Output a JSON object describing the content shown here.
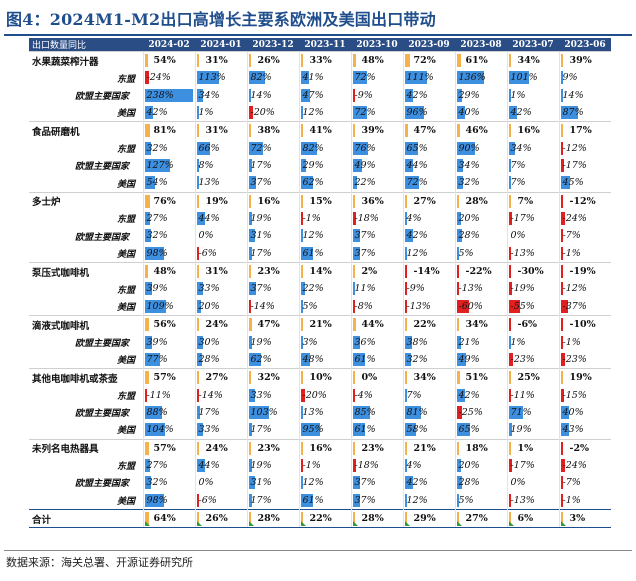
{
  "figure_title": "图4：2024M1-M2出口高增长主要系欧洲及美国出口带动",
  "header": {
    "first": "出口数量同比",
    "columns": [
      "2024-02",
      "2024-01",
      "2023-12",
      "2023-11",
      "2023-10",
      "2023-09",
      "2023-08",
      "2023-07",
      "2023-06"
    ]
  },
  "colors": {
    "header_bg": "#2b4d86",
    "pos_bar": "#3d8fe0",
    "neg_bar": "#e02020",
    "product_bar": "#f5b24a",
    "title": "#1f4e8c",
    "flag": "#2e9e3a"
  },
  "rows": [
    {
      "label": "水果蔬菜榨汁器",
      "level": 0,
      "values": [
        "54%",
        "31%",
        "26%",
        "33%",
        "48%",
        "72%",
        "61%",
        "34%",
        "39%"
      ]
    },
    {
      "label": "东盟",
      "level": 1,
      "values": [
        "-24%",
        "113%",
        "82%",
        "41%",
        "72%",
        "111%",
        "136%",
        "101%",
        "9%"
      ]
    },
    {
      "label": "欧盟主要国家",
      "level": 2,
      "values": [
        "238%",
        "34%",
        "14%",
        "47%",
        "-9%",
        "42%",
        "29%",
        "1%",
        "14%"
      ]
    },
    {
      "label": "美国",
      "level": 1,
      "values": [
        "42%",
        "1%",
        "-20%",
        "12%",
        "72%",
        "96%",
        "40%",
        "42%",
        "87%"
      ]
    },
    {
      "label": "食品研磨机",
      "level": 0,
      "values": [
        "81%",
        "31%",
        "38%",
        "41%",
        "39%",
        "47%",
        "46%",
        "16%",
        "17%"
      ]
    },
    {
      "label": "东盟",
      "level": 1,
      "values": [
        "32%",
        "66%",
        "72%",
        "82%",
        "76%",
        "65%",
        "90%",
        "34%",
        "-12%"
      ]
    },
    {
      "label": "欧盟主要国家",
      "level": 2,
      "values": [
        "127%",
        "8%",
        "17%",
        "29%",
        "49%",
        "44%",
        "34%",
        "7%",
        "-17%"
      ]
    },
    {
      "label": "美国",
      "level": 1,
      "values": [
        "54%",
        "13%",
        "37%",
        "62%",
        "22%",
        "72%",
        "32%",
        "7%",
        "45%"
      ]
    },
    {
      "label": "多士炉",
      "level": 0,
      "values": [
        "76%",
        "19%",
        "16%",
        "15%",
        "36%",
        "27%",
        "28%",
        "7%",
        "-12%"
      ]
    },
    {
      "label": "东盟",
      "level": 1,
      "values": [
        "27%",
        "44%",
        "19%",
        "-1%",
        "-18%",
        "4%",
        "20%",
        "-17%",
        "-24%"
      ]
    },
    {
      "label": "欧盟主要国家",
      "level": 2,
      "values": [
        "32%",
        "0%",
        "31%",
        "12%",
        "37%",
        "42%",
        "28%",
        "0%",
        "-7%"
      ]
    },
    {
      "label": "美国",
      "level": 1,
      "values": [
        "98%",
        "-6%",
        "17%",
        "61%",
        "37%",
        "12%",
        "5%",
        "-13%",
        "-1%"
      ]
    },
    {
      "label": "泵压式咖啡机",
      "level": 0,
      "values": [
        "48%",
        "31%",
        "23%",
        "14%",
        "2%",
        "-14%",
        "-22%",
        "-30%",
        "-19%"
      ]
    },
    {
      "label": "东盟",
      "level": 1,
      "values": [
        "39%",
        "33%",
        "37%",
        "22%",
        "11%",
        "-9%",
        "-13%",
        "-19%",
        "-12%"
      ]
    },
    {
      "label": "美国",
      "level": 1,
      "values": [
        "109%",
        "20%",
        "-14%",
        "5%",
        "-8%",
        "-13%",
        "-60%",
        "-55%",
        "-37%"
      ]
    },
    {
      "label": "滴液式咖啡机",
      "level": 0,
      "values": [
        "56%",
        "24%",
        "47%",
        "21%",
        "44%",
        "22%",
        "34%",
        "-6%",
        "-10%"
      ]
    },
    {
      "label": "欧盟主要国家",
      "level": 2,
      "values": [
        "39%",
        "30%",
        "19%",
        "3%",
        "36%",
        "38%",
        "21%",
        "1%",
        "-1%"
      ]
    },
    {
      "label": "美国",
      "level": 1,
      "values": [
        "77%",
        "28%",
        "62%",
        "48%",
        "61%",
        "32%",
        "49%",
        "-23%",
        "-23%"
      ]
    },
    {
      "label": "其他电咖啡机或茶壶",
      "level": 0,
      "values": [
        "57%",
        "27%",
        "32%",
        "10%",
        "0%",
        "34%",
        "51%",
        "25%",
        "19%"
      ]
    },
    {
      "label": "东盟",
      "level": 1,
      "values": [
        "-11%",
        "-14%",
        "33%",
        "-20%",
        "-4%",
        "7%",
        "42%",
        "-11%",
        "-15%"
      ]
    },
    {
      "label": "欧盟主要国家",
      "level": 2,
      "values": [
        "88%",
        "17%",
        "103%",
        "13%",
        "85%",
        "81%",
        "-25%",
        "71%",
        "40%"
      ]
    },
    {
      "label": "美国",
      "level": 1,
      "values": [
        "104%",
        "33%",
        "17%",
        "95%",
        "61%",
        "58%",
        "65%",
        "19%",
        "43%"
      ]
    },
    {
      "label": "未列名电热器具",
      "level": 0,
      "values": [
        "57%",
        "24%",
        "23%",
        "16%",
        "23%",
        "21%",
        "18%",
        "1%",
        "-2%"
      ]
    },
    {
      "label": "东盟",
      "level": 1,
      "values": [
        "27%",
        "44%",
        "19%",
        "-1%",
        "-18%",
        "4%",
        "20%",
        "-17%",
        "-24%"
      ]
    },
    {
      "label": "欧盟主要国家",
      "level": 2,
      "values": [
        "32%",
        "0%",
        "31%",
        "12%",
        "37%",
        "42%",
        "28%",
        "0%",
        "-7%"
      ]
    },
    {
      "label": "美国",
      "level": 1,
      "values": [
        "98%",
        "-6%",
        "17%",
        "61%",
        "37%",
        "12%",
        "5%",
        "-13%",
        "-1%"
      ]
    },
    {
      "label": "合计",
      "level": 3,
      "values": [
        "64%",
        "26%",
        "28%",
        "22%",
        "28%",
        "29%",
        "27%",
        "6%",
        "3%"
      ]
    }
  ],
  "source": "数据来源：海关总署、开源证券研究所"
}
